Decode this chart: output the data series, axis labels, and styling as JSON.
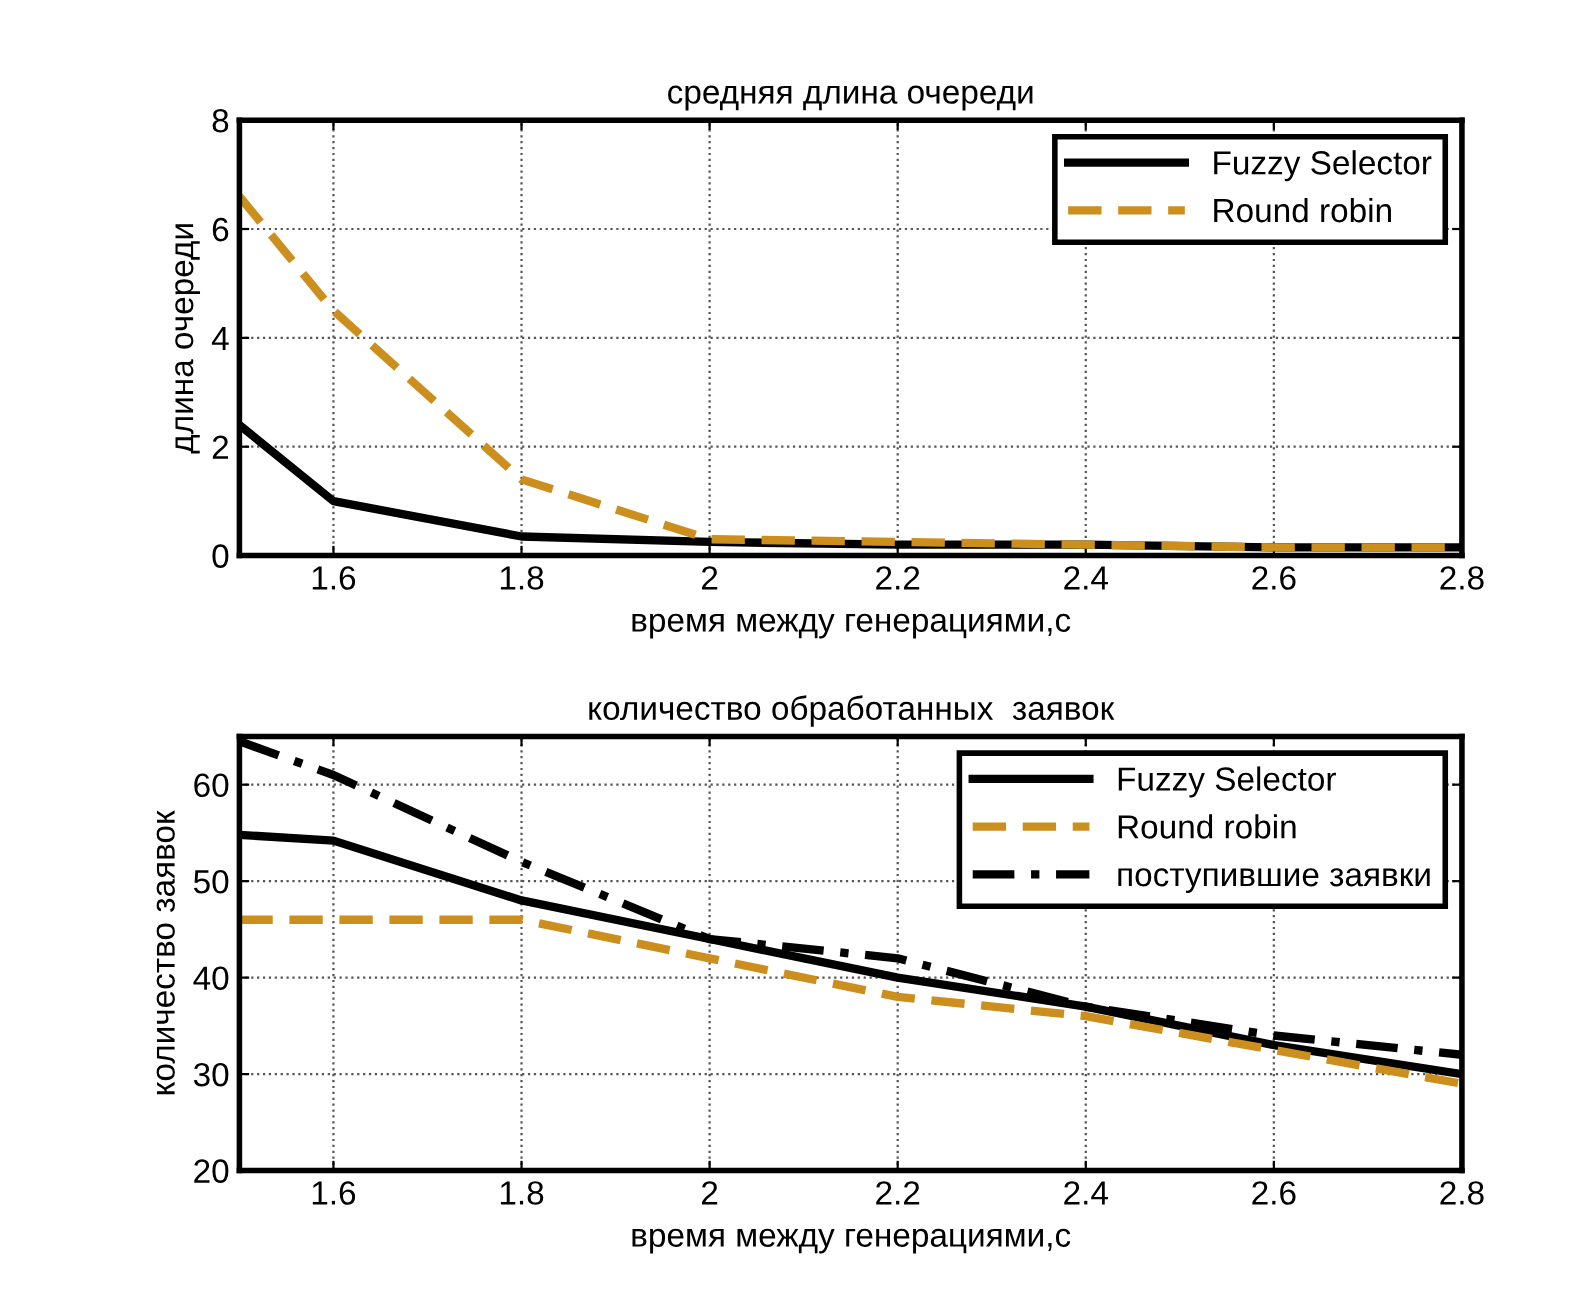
{
  "chart_data": [
    {
      "type": "line",
      "title": "средняя длина очереди",
      "xlabel": "время между генерациями,с",
      "ylabel": "длина очереди",
      "x": [
        1.5,
        1.6,
        1.8,
        2.0,
        2.2,
        2.4,
        2.6,
        2.8
      ],
      "series": [
        {
          "name": "Fuzzy Selector",
          "color": "#000000",
          "line_style": "solid",
          "values": [
            2.4,
            1.0,
            0.35,
            0.25,
            0.2,
            0.2,
            0.15,
            0.15
          ]
        },
        {
          "name": "Round robin",
          "color": "#cc8f1e",
          "line_style": "dashed",
          "values": [
            6.6,
            4.5,
            1.4,
            0.3,
            0.25,
            0.2,
            0.15,
            0.15
          ]
        }
      ],
      "xlim": [
        1.5,
        2.8
      ],
      "xticks": [
        1.6,
        1.8,
        2,
        2.2,
        2.4,
        2.6,
        2.8
      ],
      "ylim": [
        0,
        8
      ],
      "yticks": [
        0,
        2,
        4,
        6,
        8
      ],
      "grid": true,
      "legend": "top right"
    },
    {
      "type": "line",
      "title": "количество обработанных  заявок",
      "xlabel": "время между генерациями,с",
      "ylabel": "количество заявок",
      "x": [
        1.5,
        1.6,
        1.8,
        2.0,
        2.2,
        2.4,
        2.6,
        2.8
      ],
      "series": [
        {
          "name": "Fuzzy Selector",
          "color": "#000000",
          "line_style": "solid",
          "values": [
            54.8,
            54.2,
            48,
            44,
            40,
            37,
            33,
            30
          ]
        },
        {
          "name": "Round robin",
          "color": "#cc8f1e",
          "line_style": "dashed",
          "values": [
            46,
            46,
            46,
            42,
            38,
            36,
            32.5,
            29
          ]
        },
        {
          "name": "поступившие заявки",
          "color": "#000000",
          "line_style": "dashdot",
          "values": [
            64.5,
            61,
            52,
            44,
            42,
            37,
            34,
            32
          ]
        }
      ],
      "xlim": [
        1.5,
        2.8
      ],
      "xticks": [
        1.6,
        1.8,
        2,
        2.2,
        2.4,
        2.6,
        2.8
      ],
      "ylim": [
        20,
        65
      ],
      "yticks": [
        20,
        30,
        40,
        50,
        60
      ],
      "grid": true,
      "legend": "top right"
    }
  ]
}
